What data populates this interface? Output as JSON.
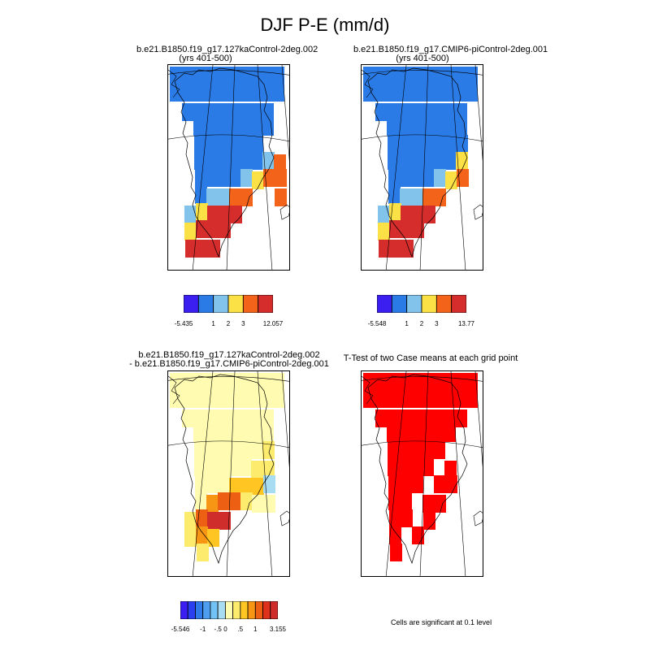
{
  "title": "DJF P-E (mm/d)",
  "panels": [
    {
      "title_lines": [
        "b.e21.B1850.f19_g17.127kaControl-2deg.002",
        "(yrs 401-500)"
      ],
      "colorbar": {
        "colors": [
          "#3b1ff0",
          "#2b7be6",
          "#82c3ec",
          "#fce146",
          "#f4631a",
          "#d52c2c"
        ],
        "labels": [
          "-5.435",
          "1",
          "2",
          "3",
          "12.057"
        ]
      }
    },
    {
      "title_lines": [
        "b.e21.B1850.f19_g17.CMIP6-piControl-2deg.001",
        "(yrs 401-500)"
      ],
      "colorbar": {
        "colors": [
          "#3b1ff0",
          "#2b7be6",
          "#82c3ec",
          "#fce146",
          "#f4631a",
          "#d52c2c"
        ],
        "labels": [
          "-5.548",
          "1",
          "2",
          "3",
          "13.77"
        ]
      }
    },
    {
      "title_lines": [
        "b.e21.B1850.f19_g17.127kaControl-2deg.002",
        "- b.e21.B1850.f19_g17.CMIP6-piControl-2deg.001"
      ],
      "colorbar": {
        "colors": [
          "#3d1ef2",
          "#2a3ff0",
          "#2f79e8",
          "#4d9ef0",
          "#73c2f5",
          "#a7dcf2",
          "#fffbb0",
          "#fdeb6d",
          "#ffc522",
          "#f79515",
          "#ed5f12",
          "#df321d",
          "#cf2c2c"
        ],
        "labels": [
          "-5.546",
          "-1",
          "-.5",
          "0",
          ".5",
          "1",
          "3.155"
        ]
      }
    },
    {
      "title_lines": [
        "T-Test of two Case means at each grid point"
      ],
      "note": "Cells are significant at 0.1 level"
    }
  ],
  "chart_data": [
    {
      "type": "heatmap",
      "title": "b.e21.B1850.f19_g17.127kaControl-2deg.002 (yrs 401-500)",
      "variable": "DJF P-E (mm/d)",
      "region": "Greenland",
      "colorbar_levels": [
        -5.435,
        1,
        2,
        3,
        12.057
      ],
      "colorbar_colors": [
        "#3b1ff0",
        "#2b7be6",
        "#82c3ec",
        "#fce146",
        "#f4631a",
        "#d52c2c"
      ],
      "cells": [
        {
          "band": "2",
          "lat_row": 0,
          "lon_cols": [
            0,
            10
          ]
        },
        {
          "band": "2",
          "lat_row": 1,
          "lon_cols": [
            0,
            10
          ]
        },
        {
          "band": "2",
          "lat_row": 2,
          "lon_cols": [
            1,
            9
          ]
        },
        {
          "band": "2",
          "lat_row": 3,
          "lon_cols": [
            2,
            9
          ]
        },
        {
          "band": "2",
          "lat_row": 4,
          "lon_cols": [
            2,
            8
          ]
        },
        {
          "band": "2",
          "lat_row": 5,
          "lon_cols": [
            2,
            8
          ]
        },
        {
          "band": "3",
          "lat_row": 5,
          "lon_cols": [
            8,
            9
          ]
        },
        {
          "band": "5",
          "lat_row": 5,
          "lon_cols": [
            9,
            10
          ]
        },
        {
          "band": "2",
          "lat_row": 6,
          "lon_cols": [
            2,
            6
          ]
        },
        {
          "band": "3",
          "lat_row": 6,
          "lon_cols": [
            6,
            7
          ]
        },
        {
          "band": "4",
          "lat_row": 6,
          "lon_cols": [
            7,
            8
          ]
        },
        {
          "band": "5",
          "lat_row": 6,
          "lon_cols": [
            8,
            10
          ]
        },
        {
          "band": "2",
          "lat_row": 7,
          "lon_cols": [
            2,
            3
          ]
        },
        {
          "band": "3",
          "lat_row": 7,
          "lon_cols": [
            3,
            5
          ]
        },
        {
          "band": "5",
          "lat_row": 7,
          "lon_cols": [
            5,
            7
          ]
        },
        {
          "band": "5",
          "lat_row": 7,
          "lon_cols": [
            9,
            10
          ]
        },
        {
          "band": "3",
          "lat_row": 8,
          "lon_cols": [
            1,
            2
          ]
        },
        {
          "band": "4",
          "lat_row": 8,
          "lon_cols": [
            2,
            3
          ]
        },
        {
          "band": "6",
          "lat_row": 8,
          "lon_cols": [
            3,
            6
          ]
        },
        {
          "band": "4",
          "lat_row": 9,
          "lon_cols": [
            1,
            2
          ]
        },
        {
          "band": "6",
          "lat_row": 9,
          "lon_cols": [
            2,
            5
          ]
        },
        {
          "band": "6",
          "lat_row": 10,
          "lon_cols": [
            1,
            4
          ]
        }
      ]
    },
    {
      "type": "heatmap",
      "title": "b.e21.B1850.f19_g17.CMIP6-piControl-2deg.001 (yrs 401-500)",
      "variable": "DJF P-E (mm/d)",
      "region": "Greenland",
      "colorbar_levels": [
        -5.548,
        1,
        2,
        3,
        13.77
      ],
      "colorbar_colors": [
        "#3b1ff0",
        "#2b7be6",
        "#82c3ec",
        "#fce146",
        "#f4631a",
        "#d52c2c"
      ],
      "cells": [
        {
          "band": "2",
          "lat_row": 0,
          "lon_cols": [
            0,
            10
          ]
        },
        {
          "band": "2",
          "lat_row": 1,
          "lon_cols": [
            0,
            10
          ]
        },
        {
          "band": "2",
          "lat_row": 2,
          "lon_cols": [
            1,
            9
          ]
        },
        {
          "band": "2",
          "lat_row": 3,
          "lon_cols": [
            2,
            9
          ]
        },
        {
          "band": "2",
          "lat_row": 4,
          "lon_cols": [
            2,
            9
          ]
        },
        {
          "band": "2",
          "lat_row": 5,
          "lon_cols": [
            2,
            8
          ]
        },
        {
          "band": "4",
          "lat_row": 5,
          "lon_cols": [
            8,
            9
          ]
        },
        {
          "band": "2",
          "lat_row": 6,
          "lon_cols": [
            2,
            6
          ]
        },
        {
          "band": "3",
          "lat_row": 6,
          "lon_cols": [
            6,
            7
          ]
        },
        {
          "band": "4",
          "lat_row": 6,
          "lon_cols": [
            7,
            8
          ]
        },
        {
          "band": "5",
          "lat_row": 6,
          "lon_cols": [
            8,
            9
          ]
        },
        {
          "band": "2",
          "lat_row": 7,
          "lon_cols": [
            2,
            3
          ]
        },
        {
          "band": "3",
          "lat_row": 7,
          "lon_cols": [
            3,
            5
          ]
        },
        {
          "band": "5",
          "lat_row": 7,
          "lon_cols": [
            5,
            7
          ]
        },
        {
          "band": "3",
          "lat_row": 8,
          "lon_cols": [
            1,
            2
          ]
        },
        {
          "band": "4",
          "lat_row": 8,
          "lon_cols": [
            2,
            3
          ]
        },
        {
          "band": "6",
          "lat_row": 8,
          "lon_cols": [
            3,
            6
          ]
        },
        {
          "band": "4",
          "lat_row": 9,
          "lon_cols": [
            1,
            2
          ]
        },
        {
          "band": "6",
          "lat_row": 9,
          "lon_cols": [
            2,
            5
          ]
        },
        {
          "band": "6",
          "lat_row": 10,
          "lon_cols": [
            1,
            4
          ]
        }
      ]
    },
    {
      "type": "heatmap",
      "title": "b.e21.B1850.f19_g17.127kaControl-2deg.002 - b.e21.B1850.f19_g17.CMIP6-piControl-2deg.001",
      "variable": "DJF P-E difference (mm/d)",
      "region": "Greenland",
      "colorbar_levels": [
        -5.546,
        -1,
        -0.5,
        0,
        0.5,
        1,
        3.155
      ],
      "cells": [
        {
          "band": "6",
          "lat_row": 0,
          "lon_cols": [
            0,
            10
          ]
        },
        {
          "band": "6",
          "lat_row": 1,
          "lon_cols": [
            0,
            10
          ]
        },
        {
          "band": "6",
          "lat_row": 2,
          "lon_cols": [
            1,
            9
          ]
        },
        {
          "band": "6",
          "lat_row": 3,
          "lon_cols": [
            2,
            9
          ]
        },
        {
          "band": "6",
          "lat_row": 4,
          "lon_cols": [
            2,
            8
          ]
        },
        {
          "band": "7",
          "lat_row": 4,
          "lon_cols": [
            8,
            9
          ]
        },
        {
          "band": "6",
          "lat_row": 5,
          "lon_cols": [
            2,
            7
          ]
        },
        {
          "band": "7",
          "lat_row": 5,
          "lon_cols": [
            7,
            9
          ]
        },
        {
          "band": "6",
          "lat_row": 6,
          "lon_cols": [
            2,
            5
          ]
        },
        {
          "band": "8",
          "lat_row": 6,
          "lon_cols": [
            5,
            8
          ]
        },
        {
          "band": "5",
          "lat_row": 6,
          "lon_cols": [
            8,
            9
          ]
        },
        {
          "band": "6",
          "lat_row": 7,
          "lon_cols": [
            2,
            3
          ]
        },
        {
          "band": "9",
          "lat_row": 7,
          "lon_cols": [
            3,
            4
          ]
        },
        {
          "band": "10",
          "lat_row": 7,
          "lon_cols": [
            4,
            6
          ]
        },
        {
          "band": "7",
          "lat_row": 7,
          "lon_cols": [
            6,
            7
          ]
        },
        {
          "band": "6",
          "lat_row": 7,
          "lon_cols": [
            7,
            9
          ]
        },
        {
          "band": "7",
          "lat_row": 8,
          "lon_cols": [
            1,
            2
          ]
        },
        {
          "band": "10",
          "lat_row": 8,
          "lon_cols": [
            2,
            3
          ]
        },
        {
          "band": "12",
          "lat_row": 8,
          "lon_cols": [
            3,
            5
          ]
        },
        {
          "band": "7",
          "lat_row": 9,
          "lon_cols": [
            1,
            2
          ]
        },
        {
          "band": "9",
          "lat_row": 9,
          "lon_cols": [
            2,
            3
          ]
        },
        {
          "band": "8",
          "lat_row": 9,
          "lon_cols": [
            3,
            4
          ]
        },
        {
          "band": "7",
          "lat_row": 10,
          "lon_cols": [
            2,
            3
          ]
        }
      ]
    },
    {
      "type": "heatmap",
      "title": "T-Test of two Case means at each grid point",
      "annotation": "Cells are significant at 0.1 level",
      "significant_color": "#ff0000",
      "region": "Greenland",
      "cells": [
        {
          "band": "sig",
          "lat_row": 0,
          "lon_cols": [
            0,
            10
          ]
        },
        {
          "band": "sig",
          "lat_row": 1,
          "lon_cols": [
            0,
            10
          ]
        },
        {
          "band": "sig",
          "lat_row": 2,
          "lon_cols": [
            1,
            9
          ]
        },
        {
          "band": "sig",
          "lat_row": 3,
          "lon_cols": [
            2,
            8
          ]
        },
        {
          "band": "sig",
          "lat_row": 4,
          "lon_cols": [
            2,
            7
          ]
        },
        {
          "band": "sig",
          "lat_row": 5,
          "lon_cols": [
            2,
            6
          ]
        },
        {
          "band": "sig",
          "lat_row": 5,
          "lon_cols": [
            7,
            8
          ]
        },
        {
          "band": "sig",
          "lat_row": 6,
          "lon_cols": [
            2,
            5
          ]
        },
        {
          "band": "sig",
          "lat_row": 6,
          "lon_cols": [
            6,
            8
          ]
        },
        {
          "band": "sig",
          "lat_row": 7,
          "lon_cols": [
            2,
            4
          ]
        },
        {
          "band": "sig",
          "lat_row": 7,
          "lon_cols": [
            5,
            7
          ]
        },
        {
          "band": "sig",
          "lat_row": 8,
          "lon_cols": [
            2,
            4
          ]
        },
        {
          "band": "sig",
          "lat_row": 8,
          "lon_cols": [
            5,
            6
          ]
        },
        {
          "band": "sig",
          "lat_row": 9,
          "lon_cols": [
            2,
            3
          ]
        },
        {
          "band": "sig",
          "lat_row": 9,
          "lon_cols": [
            4,
            5
          ]
        },
        {
          "band": "sig",
          "lat_row": 10,
          "lon_cols": [
            2,
            3
          ]
        }
      ]
    }
  ]
}
